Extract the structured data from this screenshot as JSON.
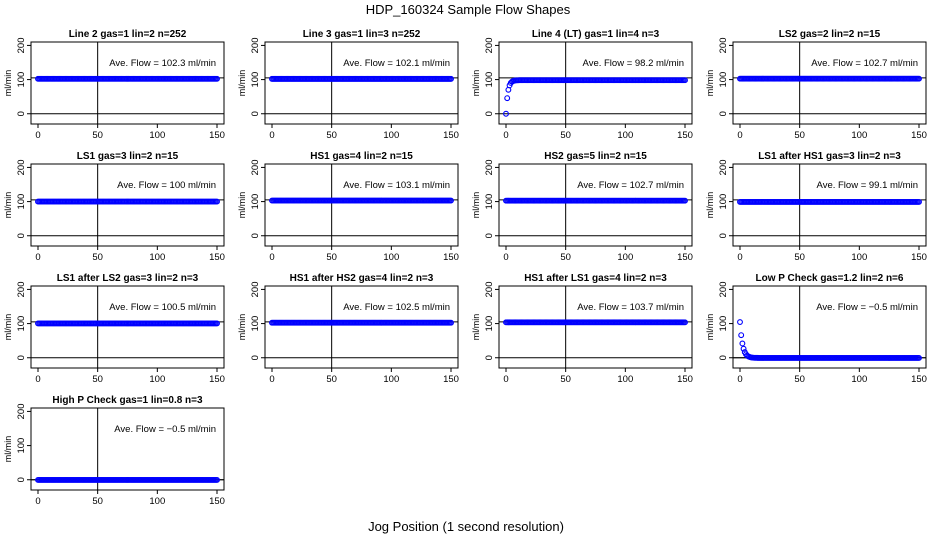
{
  "figure": {
    "title": "HDP_160324  Sample Flow Shapes",
    "xlabel": "Jog Position (1 second resolution)"
  },
  "style": {
    "point_color": "#0000ff",
    "axis_color": "#000000"
  },
  "chart_data": [
    {
      "type": "scatter",
      "title": "Line 2 gas=1 lin=2 n=252",
      "ylabel": "ml/min",
      "annotation": "Ave. Flow =  102.3  ml/min",
      "xlim": [
        0,
        150
      ],
      "ylim": [
        -30,
        210
      ],
      "xticks": [
        0,
        50,
        100,
        150
      ],
      "yticks": [
        0,
        100,
        200
      ],
      "hline": [
        0,
        105
      ],
      "vline": 50,
      "shape": "flat",
      "level": 102.3
    },
    {
      "type": "scatter",
      "title": "Line 3 gas=1 lin=3 n=252",
      "ylabel": "ml/min",
      "annotation": "Ave. Flow =  102.1  ml/min",
      "xlim": [
        0,
        150
      ],
      "ylim": [
        -30,
        210
      ],
      "xticks": [
        0,
        50,
        100,
        150
      ],
      "yticks": [
        0,
        100,
        200
      ],
      "hline": [
        0,
        105
      ],
      "vline": 50,
      "shape": "flat",
      "level": 102.1
    },
    {
      "type": "scatter",
      "title": "Line 4 (LT) gas=1 lin=4 n=3",
      "ylabel": "ml/min",
      "annotation": "Ave. Flow =  98.2  ml/min",
      "xlim": [
        0,
        150
      ],
      "ylim": [
        -30,
        210
      ],
      "xticks": [
        0,
        50,
        100,
        150
      ],
      "yticks": [
        0,
        100,
        200
      ],
      "hline": [
        0,
        105
      ],
      "vline": 50,
      "shape": "rise",
      "level": 98.2
    },
    {
      "type": "scatter",
      "title": "LS2 gas=2 lin=2 n=15",
      "ylabel": "ml/min",
      "annotation": "Ave. Flow =  102.7  ml/min",
      "xlim": [
        0,
        150
      ],
      "ylim": [
        -30,
        210
      ],
      "xticks": [
        0,
        50,
        100,
        150
      ],
      "yticks": [
        0,
        100,
        200
      ],
      "hline": [
        0,
        105
      ],
      "vline": 50,
      "shape": "flat",
      "level": 102.7
    },
    {
      "type": "scatter",
      "title": "LS1 gas=3 lin=2 n=15",
      "ylabel": "ml/min",
      "annotation": "Ave. Flow =  100  ml/min",
      "xlim": [
        0,
        150
      ],
      "ylim": [
        -30,
        210
      ],
      "xticks": [
        0,
        50,
        100,
        150
      ],
      "yticks": [
        0,
        100,
        200
      ],
      "hline": [
        0,
        105
      ],
      "vline": 50,
      "shape": "flat",
      "level": 100
    },
    {
      "type": "scatter",
      "title": "HS1 gas=4 lin=2 n=15",
      "ylabel": "ml/min",
      "annotation": "Ave. Flow =  103.1  ml/min",
      "xlim": [
        0,
        150
      ],
      "ylim": [
        -30,
        210
      ],
      "xticks": [
        0,
        50,
        100,
        150
      ],
      "yticks": [
        0,
        100,
        200
      ],
      "hline": [
        0,
        105
      ],
      "vline": 50,
      "shape": "flat",
      "level": 103.1
    },
    {
      "type": "scatter",
      "title": "HS2 gas=5 lin=2 n=15",
      "ylabel": "ml/min",
      "annotation": "Ave. Flow =  102.7  ml/min",
      "xlim": [
        0,
        150
      ],
      "ylim": [
        -30,
        210
      ],
      "xticks": [
        0,
        50,
        100,
        150
      ],
      "yticks": [
        0,
        100,
        200
      ],
      "hline": [
        0,
        105
      ],
      "vline": 50,
      "shape": "flat",
      "level": 102.7
    },
    {
      "type": "scatter",
      "title": "LS1 after HS1 gas=3 lin=2 n=3",
      "ylabel": "ml/min",
      "annotation": "Ave. Flow =  99.1  ml/min",
      "xlim": [
        0,
        150
      ],
      "ylim": [
        -30,
        210
      ],
      "xticks": [
        0,
        50,
        100,
        150
      ],
      "yticks": [
        0,
        100,
        200
      ],
      "hline": [
        0,
        105
      ],
      "vline": 50,
      "shape": "flat",
      "level": 99.1
    },
    {
      "type": "scatter",
      "title": "LS1 after LS2 gas=3 lin=2 n=3",
      "ylabel": "ml/min",
      "annotation": "Ave. Flow =  100.5  ml/min",
      "xlim": [
        0,
        150
      ],
      "ylim": [
        -30,
        210
      ],
      "xticks": [
        0,
        50,
        100,
        150
      ],
      "yticks": [
        0,
        100,
        200
      ],
      "hline": [
        0,
        105
      ],
      "vline": 50,
      "shape": "flat",
      "level": 100.5
    },
    {
      "type": "scatter",
      "title": "HS1 after HS2 gas=4 lin=2 n=3",
      "ylabel": "ml/min",
      "annotation": "Ave. Flow =  102.5  ml/min",
      "xlim": [
        0,
        150
      ],
      "ylim": [
        -30,
        210
      ],
      "xticks": [
        0,
        50,
        100,
        150
      ],
      "yticks": [
        0,
        100,
        200
      ],
      "hline": [
        0,
        105
      ],
      "vline": 50,
      "shape": "flat",
      "level": 102.5
    },
    {
      "type": "scatter",
      "title": "HS1 after LS1 gas=4 lin=2 n=3",
      "ylabel": "ml/min",
      "annotation": "Ave. Flow =  103.7  ml/min",
      "xlim": [
        0,
        150
      ],
      "ylim": [
        -30,
        210
      ],
      "xticks": [
        0,
        50,
        100,
        150
      ],
      "yticks": [
        0,
        100,
        200
      ],
      "hline": [
        0,
        105
      ],
      "vline": 50,
      "shape": "flat",
      "level": 103.7
    },
    {
      "type": "scatter",
      "title": "Low P Check gas=1.2 lin=2 n=6",
      "ylabel": "ml/min",
      "annotation": "Ave. Flow =  −0.5  ml/min",
      "xlim": [
        0,
        150
      ],
      "ylim": [
        -30,
        210
      ],
      "xticks": [
        0,
        50,
        100,
        150
      ],
      "yticks": [
        0,
        100,
        200
      ],
      "hline": [
        0,
        0
      ],
      "vline": 50,
      "shape": "decay",
      "level": -0.5
    },
    {
      "type": "scatter",
      "title": "High P Check gas=1 lin=0.8 n=3",
      "ylabel": "ml/min",
      "annotation": "Ave. Flow =  −0.5  ml/min",
      "xlim": [
        0,
        150
      ],
      "ylim": [
        -30,
        210
      ],
      "xticks": [
        0,
        50,
        100,
        150
      ],
      "yticks": [
        0,
        100,
        200
      ],
      "hline": [
        0,
        0
      ],
      "vline": 50,
      "shape": "flat",
      "level": -0.5
    }
  ]
}
